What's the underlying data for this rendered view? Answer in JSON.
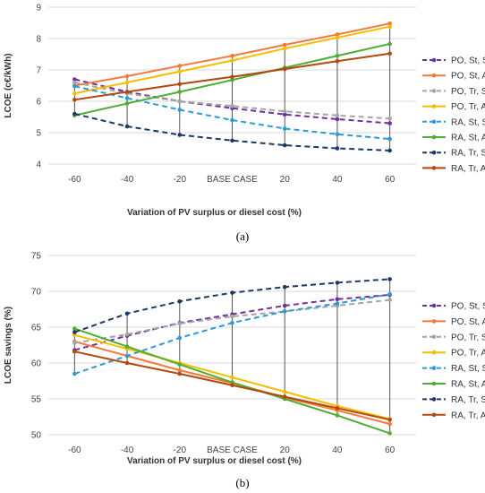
{
  "chart_data": [
    {
      "type": "line",
      "panel_label": "(a)",
      "ylabel": "LCOE (c€/kWh)",
      "xlabel": "Variation of PV surplus or diesel cost (%)",
      "categories": [
        "-60",
        "-40",
        "-20",
        "BASE CASE",
        "20",
        "40",
        "60"
      ],
      "ylim": [
        4,
        9
      ],
      "yticks": [
        "4",
        "5",
        "6",
        "7",
        "8",
        "9"
      ],
      "grid": "horizontal",
      "legend_position": "right",
      "series": [
        {
          "name": "PO, St, SC",
          "color": "#7030A0",
          "dashed": true,
          "values": [
            6.7,
            6.3,
            6.0,
            5.78,
            5.58,
            5.43,
            5.3
          ]
        },
        {
          "name": "PO, St, AU",
          "color": "#F4793B",
          "dashed": false,
          "values": [
            6.5,
            6.8,
            7.13,
            7.45,
            7.8,
            8.13,
            8.48
          ]
        },
        {
          "name": "PO, Tr, SC",
          "color": "#A5A5A5",
          "dashed": true,
          "values": [
            6.6,
            6.25,
            6.0,
            5.85,
            5.68,
            5.55,
            5.45
          ]
        },
        {
          "name": "PO, Tr, AU",
          "color": "#F2BE00",
          "dashed": false,
          "values": [
            6.25,
            6.6,
            6.95,
            7.3,
            7.68,
            8.03,
            8.38
          ]
        },
        {
          "name": "RA, St, SC",
          "color": "#2E9BD6",
          "dashed": true,
          "values": [
            6.48,
            6.1,
            5.73,
            5.4,
            5.13,
            4.95,
            4.8
          ]
        },
        {
          "name": "RA, St, AU",
          "color": "#4EAD33",
          "dashed": false,
          "values": [
            5.55,
            5.93,
            6.3,
            6.68,
            7.07,
            7.45,
            7.83
          ]
        },
        {
          "name": "RA, Tr, SC",
          "color": "#1F3864",
          "dashed": true,
          "values": [
            5.6,
            5.2,
            4.93,
            4.75,
            4.6,
            4.5,
            4.43
          ]
        },
        {
          "name": "RA, Tr, AU",
          "color": "#B5480F",
          "dashed": false,
          "values": [
            6.05,
            6.3,
            6.55,
            6.78,
            7.03,
            7.28,
            7.52
          ]
        }
      ]
    },
    {
      "type": "line",
      "panel_label": "(b)",
      "ylabel": "LCOE savings (%)",
      "xlabel": "Variation of PV surplus or diesel cost (%)",
      "categories": [
        "-60",
        "-40",
        "-20",
        "BASE CASE",
        "20",
        "40",
        "60"
      ],
      "ylim": [
        50,
        75
      ],
      "yticks": [
        "50",
        "55",
        "60",
        "65",
        "70",
        "75"
      ],
      "grid": "horizontal",
      "legend_position": "right",
      "series": [
        {
          "name": "PO, St, SC",
          "color": "#7030A0",
          "dashed": true,
          "values": [
            61.8,
            63.8,
            65.6,
            66.8,
            68.0,
            68.9,
            69.5
          ]
        },
        {
          "name": "PO, St, AU",
          "color": "#F4793B",
          "dashed": false,
          "values": [
            63.0,
            61.0,
            59.0,
            57.2,
            55.2,
            53.4,
            51.5
          ]
        },
        {
          "name": "PO, Tr, SC",
          "color": "#A5A5A5",
          "dashed": true,
          "values": [
            62.8,
            64.0,
            65.5,
            66.5,
            67.2,
            68.0,
            68.8
          ]
        },
        {
          "name": "PO, Tr, AU",
          "color": "#F2BE00",
          "dashed": false,
          "values": [
            63.9,
            62.0,
            60.0,
            58.0,
            56.0,
            54.0,
            52.2
          ]
        },
        {
          "name": "RA, St, SC",
          "color": "#2E9BD6",
          "dashed": true,
          "values": [
            58.5,
            61.0,
            63.5,
            65.6,
            67.2,
            68.3,
            69.6
          ]
        },
        {
          "name": "RA, St, AU",
          "color": "#4EAD33",
          "dashed": false,
          "values": [
            64.8,
            62.3,
            59.8,
            57.3,
            55.0,
            52.7,
            50.2
          ]
        },
        {
          "name": "RA, Tr, SC",
          "color": "#1F3864",
          "dashed": true,
          "values": [
            64.3,
            66.9,
            68.6,
            69.8,
            70.6,
            71.2,
            71.7
          ]
        },
        {
          "name": "RA, Tr, AU",
          "color": "#B5480F",
          "dashed": false,
          "values": [
            61.6,
            60.0,
            58.5,
            56.9,
            55.3,
            53.7,
            52.1
          ]
        }
      ]
    }
  ]
}
